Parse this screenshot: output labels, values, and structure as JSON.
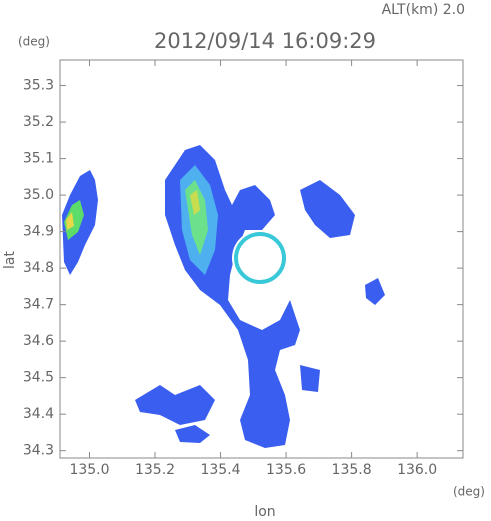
{
  "chart_data": {
    "type": "radar-map",
    "header": "ALT(km) 2.0",
    "title": "2012/09/14 16:09:29",
    "y_unit": "(deg)",
    "x_unit": "(deg)",
    "x_label": "lon",
    "y_label": "lat",
    "xlim": [
      134.91,
      136.14
    ],
    "ylim": [
      34.28,
      35.37
    ],
    "xticks": [
      {
        "value": 135.0,
        "label": "135.0"
      },
      135.2,
      135.4,
      135.6,
      135.8,
      {
        "value": 136.0,
        "label": "136.0"
      }
    ],
    "yticks": [
      34.3,
      34.4,
      34.5,
      34.6,
      34.7,
      34.8,
      34.9,
      {
        "value": 35.0,
        "label": "35.0"
      },
      35.1,
      35.2,
      35.3
    ]
  }
}
